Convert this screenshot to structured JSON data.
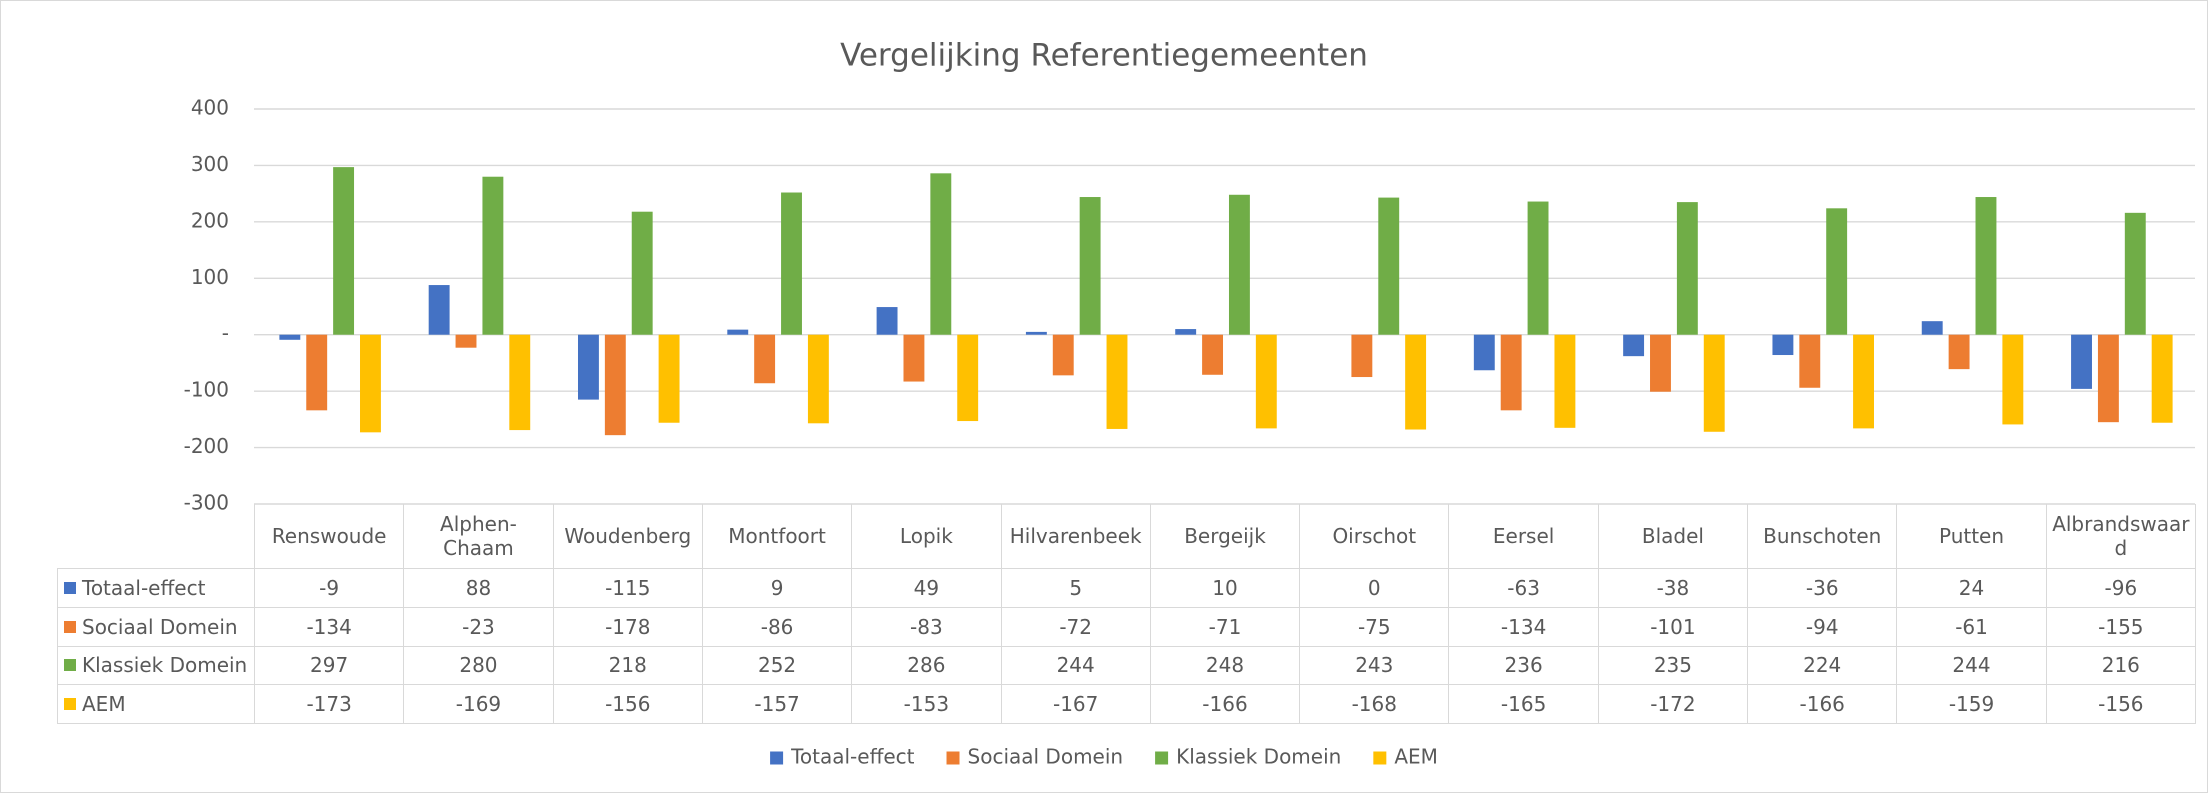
{
  "chart_data": {
    "type": "bar",
    "title": "Vergelijking Referentiegemeenten",
    "categories": [
      "Renswoude",
      "Alphen-Chaam",
      "Woudenberg",
      "Montfoort",
      "Lopik",
      "Hilvarenbeek",
      "Bergeijk",
      "Oirschot",
      "Eersel",
      "Bladel",
      "Bunschoten",
      "Putten",
      "Albrandswaard"
    ],
    "series": [
      {
        "name": "Totaal-effect",
        "color": "#4472c4",
        "values": [
          -9,
          88,
          -115,
          9,
          49,
          5,
          10,
          0,
          -63,
          -38,
          -36,
          24,
          -96
        ]
      },
      {
        "name": "Sociaal Domein",
        "color": "#ed7d31",
        "values": [
          -134,
          -23,
          -178,
          -86,
          -83,
          -72,
          -71,
          -75,
          -134,
          -101,
          -94,
          -61,
          -155
        ]
      },
      {
        "name": "Klassiek Domein",
        "color": "#70ad47",
        "values": [
          297,
          280,
          218,
          252,
          286,
          244,
          248,
          243,
          236,
          235,
          224,
          244,
          216
        ]
      },
      {
        "name": "AEM",
        "color": "#ffc000",
        "values": [
          -173,
          -169,
          -156,
          -157,
          -153,
          -167,
          -166,
          -168,
          -165,
          -172,
          -166,
          -159,
          -156
        ]
      }
    ],
    "ylim": [
      -300,
      400
    ],
    "yticks": [
      -300,
      -200,
      -100,
      {
        "value": 0,
        "label": "-"
      },
      100,
      200,
      300,
      400
    ],
    "grid": true,
    "legend": "bottom"
  }
}
